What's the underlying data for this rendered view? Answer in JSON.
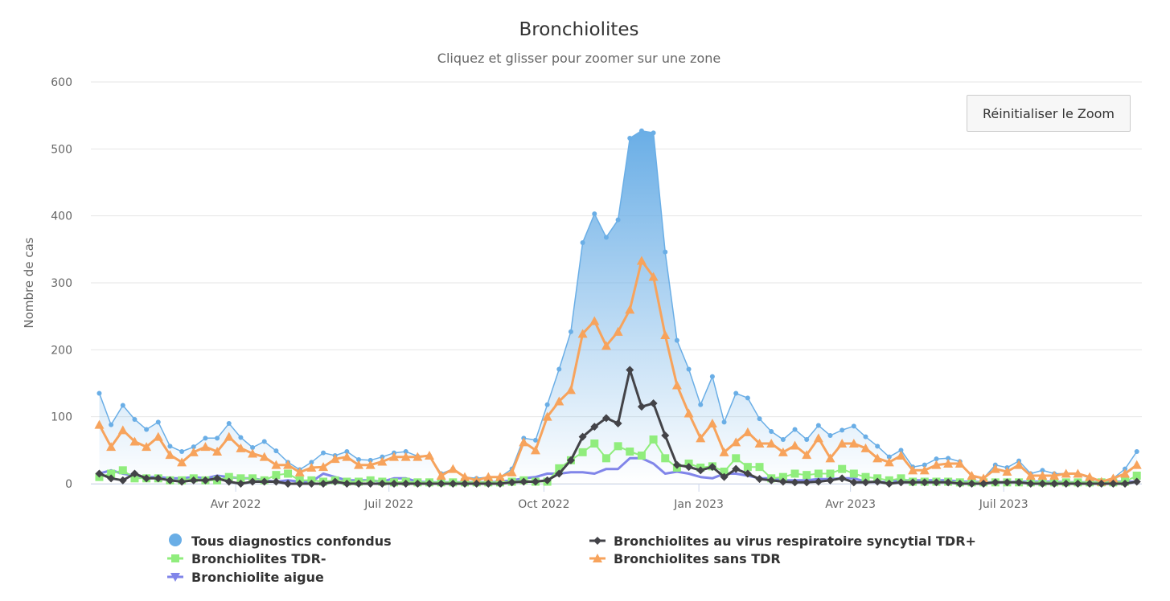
{
  "chart_data": {
    "type": "line",
    "title": "Bronchiolites",
    "subtitle": "Cliquez et glisser pour zoomer sur une zone",
    "ylabel": "Nombre de cas",
    "xlabel": "",
    "ylim": [
      0,
      600
    ],
    "yticks": [
      0,
      100,
      200,
      300,
      400,
      500,
      600
    ],
    "xlim": [
      "2022-01-05",
      "2023-09-21"
    ],
    "xticks": [
      {
        "date": "2022-04-01",
        "label": "Avr 2022"
      },
      {
        "date": "2022-07-01",
        "label": "Juil 2022"
      },
      {
        "date": "2022-10-01",
        "label": "Oct 2022"
      },
      {
        "date": "2023-01-01",
        "label": "Jan 2023"
      },
      {
        "date": "2023-04-01",
        "label": "Avr 2023"
      },
      {
        "date": "2023-07-01",
        "label": "Juil 2023"
      }
    ],
    "grid": true,
    "legend_position": "bottom",
    "x": [
      "2022-01-10",
      "2022-01-17",
      "2022-01-24",
      "2022-01-31",
      "2022-02-07",
      "2022-02-14",
      "2022-02-21",
      "2022-02-28",
      "2022-03-07",
      "2022-03-14",
      "2022-03-21",
      "2022-03-28",
      "2022-04-04",
      "2022-04-11",
      "2022-04-18",
      "2022-04-25",
      "2022-05-02",
      "2022-05-09",
      "2022-05-16",
      "2022-05-23",
      "2022-05-30",
      "2022-06-06",
      "2022-06-13",
      "2022-06-20",
      "2022-06-27",
      "2022-07-04",
      "2022-07-11",
      "2022-07-18",
      "2022-07-25",
      "2022-08-01",
      "2022-08-08",
      "2022-08-15",
      "2022-08-22",
      "2022-08-29",
      "2022-09-05",
      "2022-09-12",
      "2022-09-19",
      "2022-09-26",
      "2022-10-03",
      "2022-10-10",
      "2022-10-17",
      "2022-10-24",
      "2022-10-31",
      "2022-11-07",
      "2022-11-14",
      "2022-11-21",
      "2022-11-28",
      "2022-12-05",
      "2022-12-12",
      "2022-12-19",
      "2022-12-26",
      "2023-01-02",
      "2023-01-09",
      "2023-01-16",
      "2023-01-23",
      "2023-01-30",
      "2023-02-06",
      "2023-02-13",
      "2023-02-20",
      "2023-02-27",
      "2023-03-06",
      "2023-03-13",
      "2023-03-20",
      "2023-03-27",
      "2023-04-03",
      "2023-04-10",
      "2023-04-17",
      "2023-04-24",
      "2023-05-01",
      "2023-05-08",
      "2023-05-15",
      "2023-05-22",
      "2023-05-29",
      "2023-06-05",
      "2023-06-12",
      "2023-06-19",
      "2023-06-26",
      "2023-07-03",
      "2023-07-10",
      "2023-07-17",
      "2023-07-24",
      "2023-07-31",
      "2023-08-07",
      "2023-08-14",
      "2023-08-21",
      "2023-08-28",
      "2023-09-04",
      "2023-09-11",
      "2023-09-18"
    ],
    "series": [
      {
        "name": "Tous diagnostics confondus",
        "style": "area",
        "marker": "circle",
        "color": "#7cb5ec",
        "values": [
          135,
          88,
          117,
          96,
          81,
          92,
          56,
          48,
          55,
          68,
          68,
          90,
          69,
          54,
          63,
          49,
          32,
          21,
          32,
          46,
          42,
          48,
          36,
          35,
          40,
          46,
          48,
          41,
          42,
          15,
          22,
          10,
          8,
          10,
          10,
          22,
          68,
          65,
          118,
          171,
          227,
          360,
          403,
          368,
          394,
          516,
          527,
          524,
          346,
          214,
          171,
          118,
          160,
          92,
          135,
          128,
          97,
          78,
          66,
          81,
          66,
          87,
          72,
          80,
          86,
          70,
          56,
          40,
          50,
          25,
          28,
          37,
          38,
          33,
          10,
          8,
          28,
          24,
          34,
          15,
          20,
          15,
          15,
          15,
          8,
          3,
          8,
          22,
          48
        ]
      },
      {
        "name": "Bronchiolites au virus respiratoire syncytial TDR+",
        "style": "line",
        "marker": "diamond",
        "color": "#434348",
        "values": [
          15,
          8,
          5,
          15,
          8,
          8,
          5,
          3,
          5,
          5,
          8,
          3,
          0,
          3,
          3,
          3,
          0,
          0,
          0,
          0,
          3,
          0,
          0,
          0,
          0,
          0,
          0,
          0,
          0,
          0,
          0,
          0,
          0,
          0,
          0,
          2,
          3,
          3,
          5,
          15,
          35,
          70,
          85,
          98,
          90,
          170,
          115,
          120,
          72,
          28,
          25,
          20,
          25,
          10,
          22,
          15,
          7,
          5,
          3,
          2,
          2,
          3,
          5,
          8,
          2,
          2,
          3,
          0,
          2,
          2,
          2,
          2,
          2,
          0,
          0,
          0,
          2,
          2,
          2,
          0,
          0,
          0,
          0,
          0,
          0,
          0,
          0,
          0,
          3
        ]
      },
      {
        "name": "Bronchiolites TDR-",
        "style": "line",
        "marker": "square",
        "color": "#90ed7d",
        "values": [
          10,
          15,
          20,
          8,
          8,
          8,
          5,
          5,
          8,
          5,
          5,
          10,
          8,
          8,
          5,
          13,
          15,
          5,
          5,
          3,
          5,
          3,
          3,
          5,
          3,
          2,
          3,
          2,
          2,
          2,
          2,
          2,
          2,
          2,
          2,
          3,
          5,
          3,
          3,
          23,
          35,
          47,
          60,
          38,
          56,
          48,
          42,
          66,
          38,
          24,
          30,
          24,
          26,
          18,
          38,
          25,
          25,
          8,
          10,
          15,
          13,
          15,
          15,
          22,
          15,
          10,
          8,
          5,
          8,
          3,
          3,
          3,
          3,
          2,
          2,
          2,
          2,
          2,
          2,
          2,
          2,
          2,
          2,
          2,
          2,
          2,
          2,
          3,
          12
        ]
      },
      {
        "name": "Bronchiolites sans TDR",
        "style": "line",
        "marker": "triangle",
        "color": "#f7a35c",
        "values": [
          88,
          55,
          80,
          63,
          55,
          70,
          43,
          32,
          47,
          55,
          48,
          70,
          53,
          45,
          40,
          28,
          28,
          17,
          24,
          25,
          37,
          40,
          28,
          28,
          33,
          40,
          40,
          40,
          42,
          12,
          22,
          10,
          5,
          10,
          10,
          17,
          62,
          50,
          100,
          123,
          140,
          224,
          243,
          206,
          227,
          260,
          333,
          309,
          222,
          147,
          105,
          68,
          90,
          47,
          62,
          77,
          60,
          60,
          47,
          57,
          43,
          68,
          38,
          60,
          60,
          53,
          38,
          32,
          42,
          20,
          20,
          28,
          30,
          30,
          12,
          8,
          22,
          18,
          28,
          12,
          12,
          12,
          15,
          15,
          10,
          3,
          8,
          15,
          28
        ]
      },
      {
        "name": "Bronchiolite aigue",
        "style": "line",
        "marker": "triangle-down",
        "color": "#8085e9",
        "values": [
          15,
          20,
          15,
          12,
          10,
          10,
          8,
          8,
          10,
          8,
          12,
          10,
          8,
          8,
          5,
          3,
          5,
          3,
          3,
          15,
          10,
          5,
          5,
          5,
          3,
          8,
          8,
          3,
          2,
          2,
          2,
          2,
          2,
          2,
          3,
          5,
          8,
          10,
          15,
          15,
          17,
          17,
          15,
          22,
          22,
          38,
          38,
          30,
          15,
          18,
          15,
          10,
          8,
          15,
          15,
          12,
          8,
          8,
          5,
          5,
          5,
          7,
          7,
          8,
          8,
          3,
          2,
          3,
          5,
          5,
          5,
          5,
          5,
          3,
          3,
          2,
          2,
          2,
          3,
          3,
          3,
          3,
          2,
          2,
          2,
          2,
          3,
          3,
          3
        ]
      }
    ]
  },
  "toolbar": {
    "reset_zoom_label": "Réinitialiser le Zoom"
  }
}
